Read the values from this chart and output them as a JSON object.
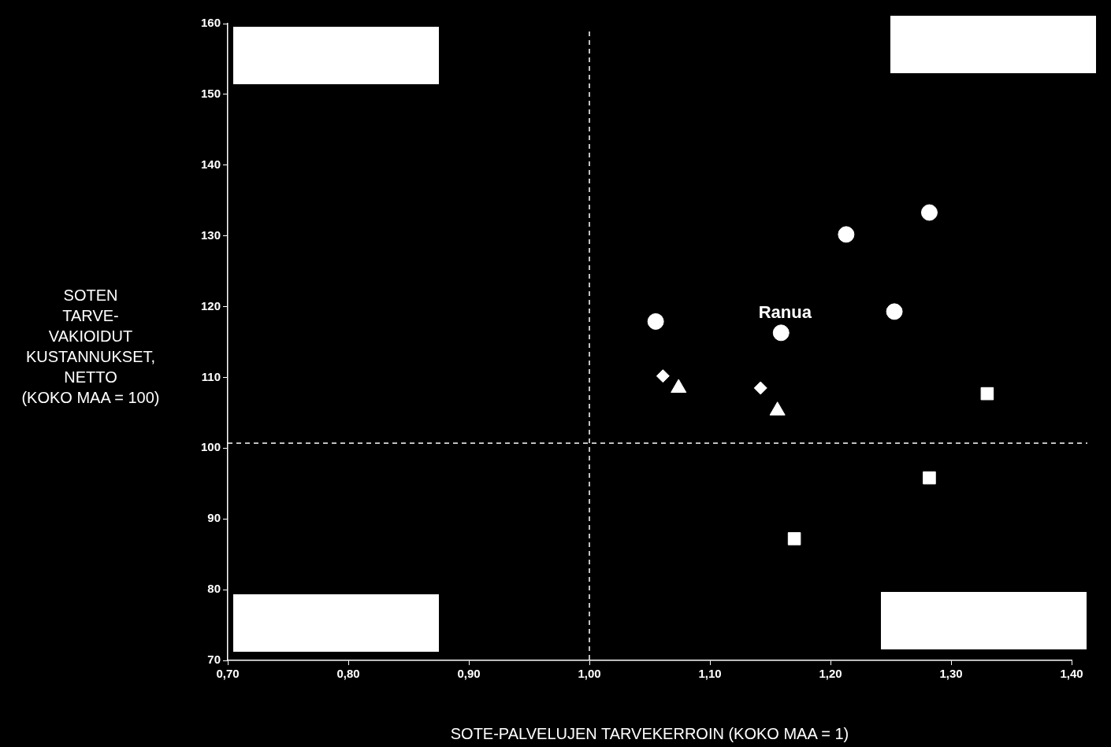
{
  "chart_data": {
    "type": "scatter",
    "xlabel": "SOTE-PALVELUJEN TARVEKERROIN (KOKO MAA = 1)",
    "ylabel": "SOTEN\nTARVE-\nVAKIOIDUT\nKUSTANNUKSET,\nNETTO\n(KOKO MAA = 100)",
    "xlim": [
      0.7,
      1.4
    ],
    "xticks": [
      {
        "value": 0.7,
        "label": "0,70"
      },
      {
        "value": 0.8,
        "label": "0,80"
      },
      {
        "value": 0.9,
        "label": "0,90"
      },
      {
        "value": 1.0,
        "label": "1,00"
      },
      {
        "value": 1.1,
        "label": "1,10"
      },
      {
        "value": 1.2,
        "label": "1,20"
      },
      {
        "value": 1.3,
        "label": "1,30"
      },
      {
        "value": 1.4,
        "label": "1,40"
      }
    ],
    "ylim": [
      70,
      160
    ],
    "yticks": [
      70,
      80,
      90,
      100,
      110,
      120,
      130,
      140,
      150,
      160
    ],
    "grid": false,
    "legend": false,
    "series": [
      {
        "color": "#ffffff",
        "marker": "circle",
        "x": [
          1.055,
          1.159,
          1.213,
          1.253,
          1.282
        ],
        "values": [
          117.9,
          116.3,
          130.2,
          119.3,
          133.3
        ]
      },
      {
        "color": "#ffffff",
        "marker": "diamond",
        "x": [
          1.061,
          1.142
        ],
        "values": [
          110.2,
          108.5
        ]
      },
      {
        "color": "#ffffff",
        "marker": "triangle",
        "x": [
          1.074,
          1.156
        ],
        "values": [
          108.5,
          105.3
        ]
      },
      {
        "color": "#ffffff",
        "marker": "square",
        "x": [
          1.33,
          1.282,
          1.17
        ],
        "values": [
          107.7,
          95.8,
          87.2
        ]
      }
    ],
    "ref_lines": [
      {
        "axis": "x",
        "value": 1.0,
        "color": "#ffffff",
        "line_style": "dashed"
      },
      {
        "axis": "y",
        "value": 100.7,
        "color": "#ffffff",
        "line_style": "dashed"
      }
    ],
    "annotations": [
      {
        "text": "Ranua",
        "x": 1.159,
        "y": 116.3
      }
    ]
  }
}
